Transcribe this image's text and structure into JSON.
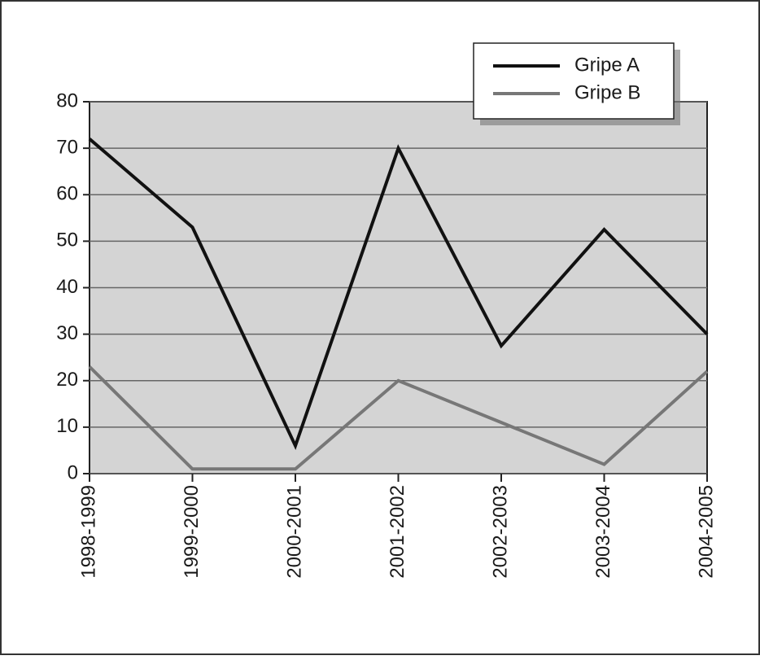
{
  "chart_data": {
    "type": "line",
    "categories": [
      "1998-1999",
      "1999-2000",
      "2000-2001",
      "2001-2002",
      "2002-2003",
      "2003-2004",
      "2004-2005"
    ],
    "series": [
      {
        "name": "Gripe A",
        "color": "#111111",
        "values": [
          72,
          53,
          6,
          70,
          27.5,
          52.5,
          30
        ]
      },
      {
        "name": "Gripe B",
        "color": "#777777",
        "values": [
          23,
          1,
          1,
          20,
          11,
          2,
          22
        ]
      }
    ],
    "ylim": [
      0,
      80
    ],
    "yticks": [
      0,
      10,
      20,
      30,
      40,
      50,
      60,
      70,
      80
    ],
    "grid": true,
    "legend": "top-right"
  }
}
